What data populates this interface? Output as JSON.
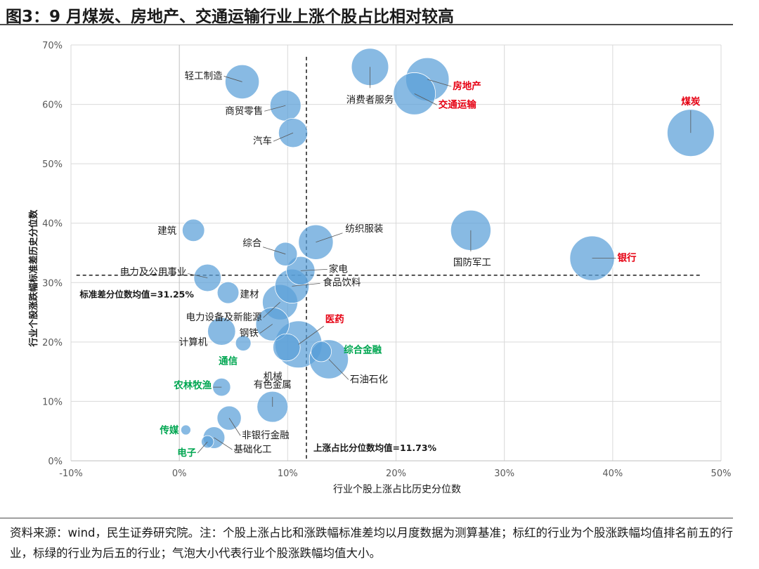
{
  "figure": {
    "title": "图3：9 月煤炭、房地产、交通运输行业上涨个股占比相对较高",
    "note": "资料来源：wind，民生证券研究院。注：个股上涨占比和涨跌幅标准差均以月度数据为测算基准；标红的行业为个股涨跌幅均值排名前五的行业，标绿的行业为后五的行业；气泡大小代表行业个股涨跌幅均值大小。"
  },
  "colors": {
    "bubble": "#5aa0d8",
    "bubble_edge": "#ffffff",
    "red": "#e60012",
    "green": "#00a651",
    "text": "#1a1a1a",
    "grid": "#d9d9d9",
    "axis": "#bfbfbf"
  },
  "chart_data": {
    "type": "scatter",
    "subtype": "bubble",
    "title": "",
    "xlabel": "行业个股上涨占比历史分位数",
    "ylabel": "行业个股涨跌幅标准差历史分位数",
    "xlim": [
      -10,
      50
    ],
    "ylim": [
      0,
      70
    ],
    "xticks": [
      -10,
      0,
      10,
      20,
      30,
      40,
      50
    ],
    "yticks": [
      0,
      10,
      20,
      30,
      40,
      50,
      60,
      70
    ],
    "xtick_labels": [
      "-10%",
      "0%",
      "10%",
      "20%",
      "30%",
      "40%",
      "50%"
    ],
    "ytick_labels": [
      "0%",
      "10%",
      "20%",
      "30%",
      "40%",
      "50%",
      "60%",
      "70%"
    ],
    "grid": true,
    "mean_lines": [
      {
        "axis": "x",
        "value": 11.73,
        "label": "上涨占比分位数均值=11.73%"
      },
      {
        "axis": "y",
        "value": 31.25,
        "label": "标准差分位数均值=31.25%"
      }
    ],
    "points": [
      {
        "name": "轻工制造",
        "x": 5.8,
        "y": 63.8,
        "size": 5.5,
        "tag": "normal"
      },
      {
        "name": "商贸零售",
        "x": 9.8,
        "y": 59.8,
        "size": 5.0,
        "tag": "normal"
      },
      {
        "name": "汽车",
        "x": 10.5,
        "y": 55.2,
        "size": 4.7,
        "tag": "normal"
      },
      {
        "name": "消费者服务",
        "x": 17.6,
        "y": 66.3,
        "size": 6.0,
        "tag": "normal"
      },
      {
        "name": "房地产",
        "x": 22.9,
        "y": 64.2,
        "size": 7.0,
        "tag": "red"
      },
      {
        "name": "交通运输",
        "x": 21.7,
        "y": 61.8,
        "size": 6.8,
        "tag": "red"
      },
      {
        "name": "煤炭",
        "x": 47.2,
        "y": 55.2,
        "size": 7.6,
        "tag": "red"
      },
      {
        "name": "建筑",
        "x": 1.3,
        "y": 38.8,
        "size": 3.6,
        "tag": "normal"
      },
      {
        "name": "综合",
        "x": 9.8,
        "y": 34.8,
        "size": 3.8,
        "tag": "normal"
      },
      {
        "name": "纺织服装",
        "x": 12.6,
        "y": 36.8,
        "size": 5.6,
        "tag": "normal"
      },
      {
        "name": "家电",
        "x": 11.2,
        "y": 32.0,
        "size": 4.6,
        "tag": "normal"
      },
      {
        "name": "国防军工",
        "x": 26.9,
        "y": 38.8,
        "size": 6.5,
        "tag": "normal"
      },
      {
        "name": "银行",
        "x": 38.1,
        "y": 34.1,
        "size": 7.2,
        "tag": "red"
      },
      {
        "name": "电力及公用事业",
        "x": 2.6,
        "y": 30.8,
        "size": 4.4,
        "tag": "normal"
      },
      {
        "name": "食品饮料",
        "x": 10.4,
        "y": 29.4,
        "size": 5.5,
        "tag": "normal"
      },
      {
        "name": "建材",
        "x": 4.5,
        "y": 28.3,
        "size": 3.5,
        "tag": "normal"
      },
      {
        "name": "电力设备及新能源",
        "x": 9.3,
        "y": 26.7,
        "size": 5.7,
        "tag": "normal"
      },
      {
        "name": "钢铁",
        "x": 8.6,
        "y": 23.0,
        "size": 5.4,
        "tag": "normal"
      },
      {
        "name": "医药",
        "x": 11.0,
        "y": 19.6,
        "size": 7.6,
        "tag": "red"
      },
      {
        "name": "综合金融",
        "x": 13.1,
        "y": 18.4,
        "size": 3.3,
        "tag": "green"
      },
      {
        "name": "计算机",
        "x": 3.9,
        "y": 21.8,
        "size": 4.5,
        "tag": "normal"
      },
      {
        "name": "通信",
        "x": 5.9,
        "y": 19.8,
        "size": 2.5,
        "tag": "green"
      },
      {
        "name": "机械",
        "x": 9.9,
        "y": 19.1,
        "size": 4.4,
        "tag": "normal"
      },
      {
        "name": "石油石化",
        "x": 13.8,
        "y": 17.1,
        "size": 6.3,
        "tag": "normal"
      },
      {
        "name": "农林牧渔",
        "x": 3.9,
        "y": 12.4,
        "size": 2.9,
        "tag": "green"
      },
      {
        "name": "有色金属",
        "x": 8.6,
        "y": 9.1,
        "size": 5.0,
        "tag": "normal"
      },
      {
        "name": "非银行金融",
        "x": 4.6,
        "y": 7.2,
        "size": 3.9,
        "tag": "normal"
      },
      {
        "name": "传媒",
        "x": 0.6,
        "y": 5.2,
        "size": 1.6,
        "tag": "green"
      },
      {
        "name": "基础化工",
        "x": 3.2,
        "y": 3.9,
        "size": 3.5,
        "tag": "normal"
      },
      {
        "name": "电子",
        "x": 2.6,
        "y": 3.2,
        "size": 2.0,
        "tag": "green"
      }
    ]
  }
}
